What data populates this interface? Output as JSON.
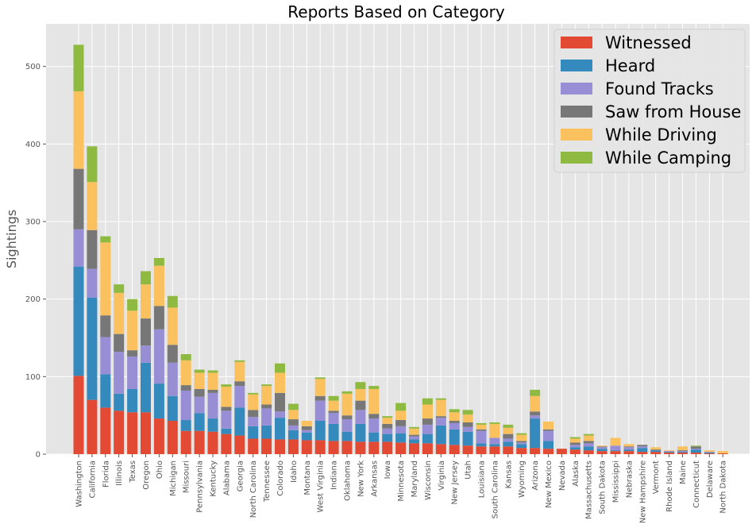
{
  "chart_data": {
    "type": "bar",
    "stacked": true,
    "title": "Reports Based on Category",
    "xlabel": "",
    "ylabel": "Sightings",
    "ylim": [
      0,
      555
    ],
    "yticks": [
      0,
      100,
      200,
      300,
      400,
      500
    ],
    "grid": true,
    "legend_position": "top-right",
    "categories": [
      "Washington",
      "California",
      "Florida",
      "Illinois",
      "Texas",
      "Oregon",
      "Ohio",
      "Michigan",
      "Missouri",
      "Pennsylvania",
      "Kentucky",
      "Alabama",
      "Georgia",
      "North Carolina",
      "Tennessee",
      "Colorado",
      "Idaho",
      "Montana",
      "West Virginia",
      "Indiana",
      "Oklahoma",
      "New York",
      "Arkansas",
      "Iowa",
      "Minnesota",
      "Maryland",
      "Wisconsin",
      "Virginia",
      "New Jersey",
      "Utah",
      "Louisiana",
      "South Carolina",
      "Kansas",
      "Wyoming",
      "Arizona",
      "New Mexico",
      "Nevada",
      "Alaska",
      "Massachusetts",
      "South Dakota",
      "Mississippi",
      "Nebraska",
      "New Hampshire",
      "Vermont",
      "Rhode Island",
      "Maine",
      "Connecticut",
      "Delaware",
      "North Dakota"
    ],
    "series": [
      {
        "name": "Witnessed",
        "color": "#e24a33",
        "values": [
          101,
          70,
          60,
          56,
          54,
          54,
          46,
          43,
          30,
          30,
          29,
          26,
          24,
          20,
          20,
          19,
          19,
          18,
          18,
          17,
          17,
          16,
          16,
          16,
          15,
          14,
          14,
          13,
          12,
          11,
          10,
          10,
          10,
          8,
          8,
          7,
          7,
          6,
          5,
          4,
          4,
          4,
          3,
          3,
          2,
          2,
          2,
          1,
          1
        ]
      },
      {
        "name": "Heard",
        "color": "#348abd",
        "values": [
          141,
          132,
          43,
          22,
          30,
          64,
          45,
          32,
          14,
          23,
          17,
          7,
          36,
          16,
          17,
          28,
          12,
          10,
          25,
          22,
          12,
          23,
          12,
          10,
          12,
          5,
          12,
          24,
          20,
          18,
          4,
          3,
          6,
          5,
          38,
          10,
          0,
          3,
          5,
          3,
          1,
          2,
          5,
          2,
          1,
          1,
          4,
          1,
          0
        ]
      },
      {
        "name": "Found Tracks",
        "color": "#988ed5",
        "values": [
          48,
          37,
          48,
          54,
          42,
          22,
          70,
          43,
          38,
          21,
          33,
          23,
          28,
          12,
          22,
          8,
          6,
          3,
          26,
          14,
          16,
          18,
          18,
          7,
          9,
          4,
          12,
          10,
          8,
          6,
          16,
          8,
          4,
          2,
          4,
          13,
          0,
          3,
          4,
          2,
          6,
          3,
          2,
          0,
          1,
          1,
          1,
          1,
          0
        ]
      },
      {
        "name": "Saw from House",
        "color": "#777777",
        "values": [
          78,
          50,
          28,
          23,
          8,
          35,
          30,
          23,
          7,
          10,
          4,
          5,
          6,
          9,
          5,
          24,
          8,
          5,
          6,
          3,
          5,
          12,
          6,
          6,
          8,
          2,
          8,
          2,
          3,
          6,
          2,
          0,
          6,
          2,
          5,
          2,
          0,
          3,
          3,
          1,
          0,
          1,
          2,
          1,
          0,
          1,
          3,
          0,
          0
        ]
      },
      {
        "name": "While Driving",
        "color": "#fbc15e",
        "values": [
          100,
          62,
          94,
          53,
          51,
          44,
          52,
          48,
          32,
          21,
          22,
          26,
          25,
          20,
          24,
          26,
          12,
          7,
          22,
          13,
          28,
          15,
          32,
          8,
          12,
          8,
          18,
          21,
          11,
          10,
          6,
          18,
          8,
          8,
          20,
          10,
          0,
          5,
          7,
          1,
          10,
          3,
          0,
          3,
          1,
          5,
          0,
          2,
          3
        ]
      },
      {
        "name": "While Camping",
        "color": "#8eba42",
        "values": [
          60,
          46,
          8,
          11,
          15,
          17,
          10,
          15,
          8,
          4,
          3,
          3,
          2,
          2,
          2,
          12,
          8,
          0,
          2,
          6,
          3,
          9,
          4,
          2,
          10,
          2,
          8,
          2,
          4,
          6,
          2,
          2,
          4,
          2,
          8,
          0,
          0,
          2,
          2,
          0,
          0,
          0,
          0,
          0,
          0,
          0,
          1,
          0,
          0
        ]
      }
    ]
  }
}
